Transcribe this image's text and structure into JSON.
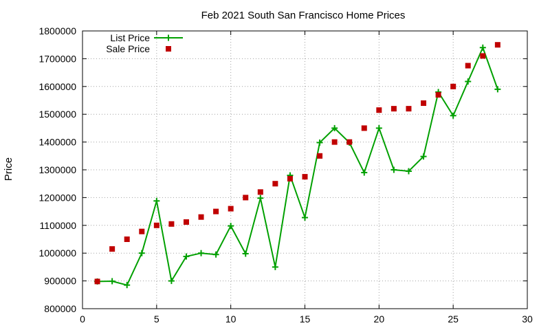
{
  "chart_data": {
    "type": "line",
    "title": "Feb 2021 South San Francisco Home Prices",
    "xlabel": "",
    "ylabel": "Price",
    "xlim": [
      0,
      30
    ],
    "ylim": [
      800000,
      1800000
    ],
    "xticks": [
      0,
      5,
      10,
      15,
      20,
      25,
      30
    ],
    "yticks": [
      800000,
      900000,
      1000000,
      1100000,
      1200000,
      1300000,
      1400000,
      1500000,
      1600000,
      1700000,
      1800000
    ],
    "grid": true,
    "legend_position": "top-left",
    "x": [
      1,
      2,
      3,
      4,
      5,
      6,
      7,
      8,
      9,
      10,
      11,
      12,
      13,
      14,
      15,
      16,
      17,
      18,
      19,
      20,
      21,
      22,
      23,
      24,
      25,
      26,
      27,
      28
    ],
    "series": [
      {
        "name": "List Price",
        "style": "line+cross",
        "color": "#00a000",
        "values": [
          898000,
          899000,
          885000,
          1000000,
          1188000,
          900000,
          988000,
          1000000,
          995000,
          1098000,
          998000,
          1198000,
          950000,
          1280000,
          1128000,
          1398000,
          1450000,
          1398000,
          1290000,
          1450000,
          1300000,
          1295000,
          1348000,
          1580000,
          1495000,
          1618000,
          1740000,
          1590000
        ]
      },
      {
        "name": "Sale Price",
        "style": "square",
        "color": "#c00000",
        "values": [
          898000,
          1015000,
          1050000,
          1078000,
          1100000,
          1105000,
          1112000,
          1130000,
          1150000,
          1160000,
          1200000,
          1220000,
          1250000,
          1268000,
          1275000,
          1350000,
          1400000,
          1400000,
          1450000,
          1515000,
          1520000,
          1520000,
          1540000,
          1570000,
          1600000,
          1675000,
          1710000,
          1750000
        ]
      }
    ]
  }
}
